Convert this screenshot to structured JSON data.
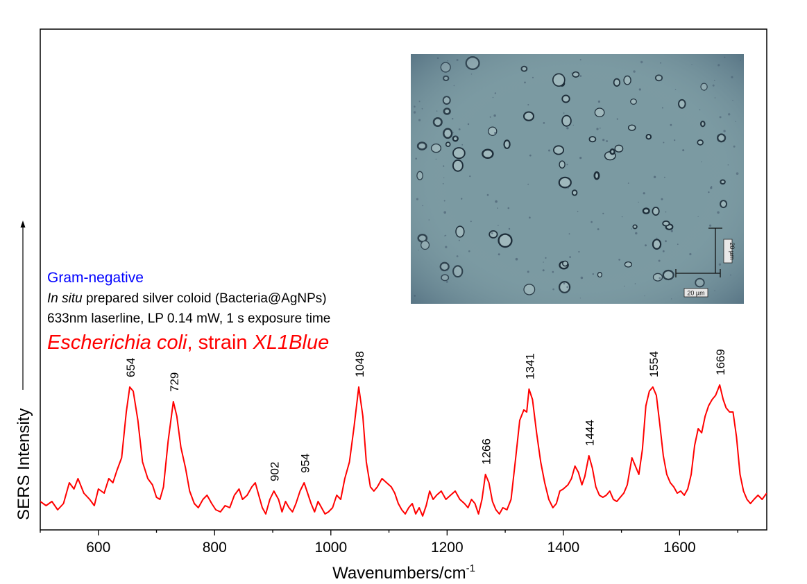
{
  "chart_data": {
    "type": "line",
    "xlabel": "Wavenumbers/cm",
    "xlabel_sup": "-1",
    "ylabel": "SERS Intensity",
    "xlim": [
      500,
      1750
    ],
    "ylim": [
      0,
      100
    ],
    "xticks": [
      600,
      800,
      1000,
      1200,
      1400,
      1600
    ],
    "grid": false,
    "series": [
      {
        "color": "#ff0000",
        "points": [
          [
            500,
            9
          ],
          [
            510,
            7
          ],
          [
            520,
            9
          ],
          [
            530,
            5
          ],
          [
            540,
            8
          ],
          [
            550,
            18
          ],
          [
            558,
            15
          ],
          [
            565,
            20
          ],
          [
            575,
            13
          ],
          [
            585,
            10
          ],
          [
            593,
            7
          ],
          [
            600,
            15
          ],
          [
            610,
            13
          ],
          [
            618,
            20
          ],
          [
            625,
            18
          ],
          [
            632,
            24
          ],
          [
            640,
            30
          ],
          [
            648,
            52
          ],
          [
            654,
            64
          ],
          [
            660,
            62
          ],
          [
            668,
            48
          ],
          [
            676,
            28
          ],
          [
            685,
            20
          ],
          [
            693,
            17
          ],
          [
            700,
            11
          ],
          [
            706,
            10
          ],
          [
            712,
            16
          ],
          [
            720,
            38
          ],
          [
            729,
            57
          ],
          [
            735,
            50
          ],
          [
            742,
            35
          ],
          [
            750,
            25
          ],
          [
            757,
            14
          ],
          [
            765,
            8
          ],
          [
            772,
            6
          ],
          [
            780,
            10
          ],
          [
            787,
            12
          ],
          [
            795,
            8
          ],
          [
            802,
            5
          ],
          [
            810,
            4
          ],
          [
            818,
            7
          ],
          [
            826,
            6
          ],
          [
            834,
            12
          ],
          [
            842,
            15
          ],
          [
            848,
            10
          ],
          [
            856,
            12
          ],
          [
            864,
            16
          ],
          [
            870,
            18
          ],
          [
            876,
            12
          ],
          [
            882,
            6
          ],
          [
            888,
            3
          ],
          [
            895,
            10
          ],
          [
            902,
            14
          ],
          [
            910,
            10
          ],
          [
            916,
            4
          ],
          [
            922,
            9
          ],
          [
            928,
            6
          ],
          [
            934,
            4
          ],
          [
            940,
            8
          ],
          [
            947,
            14
          ],
          [
            954,
            18
          ],
          [
            960,
            13
          ],
          [
            966,
            8
          ],
          [
            972,
            4
          ],
          [
            978,
            9
          ],
          [
            984,
            6
          ],
          [
            990,
            3
          ],
          [
            996,
            4
          ],
          [
            1003,
            6
          ],
          [
            1010,
            12
          ],
          [
            1017,
            10
          ],
          [
            1024,
            20
          ],
          [
            1032,
            28
          ],
          [
            1040,
            45
          ],
          [
            1048,
            64
          ],
          [
            1055,
            50
          ],
          [
            1061,
            28
          ],
          [
            1068,
            16
          ],
          [
            1074,
            14
          ],
          [
            1080,
            16
          ],
          [
            1088,
            20
          ],
          [
            1096,
            18
          ],
          [
            1104,
            16
          ],
          [
            1110,
            13
          ],
          [
            1116,
            8
          ],
          [
            1122,
            5
          ],
          [
            1128,
            3
          ],
          [
            1134,
            6
          ],
          [
            1140,
            8
          ],
          [
            1146,
            3
          ],
          [
            1152,
            6
          ],
          [
            1158,
            2
          ],
          [
            1164,
            7
          ],
          [
            1170,
            14
          ],
          [
            1176,
            10
          ],
          [
            1182,
            12
          ],
          [
            1190,
            14
          ],
          [
            1198,
            10
          ],
          [
            1206,
            12
          ],
          [
            1214,
            14
          ],
          [
            1222,
            10
          ],
          [
            1230,
            8
          ],
          [
            1236,
            6
          ],
          [
            1242,
            10
          ],
          [
            1248,
            8
          ],
          [
            1254,
            3
          ],
          [
            1260,
            10
          ],
          [
            1266,
            22
          ],
          [
            1272,
            18
          ],
          [
            1278,
            9
          ],
          [
            1284,
            5
          ],
          [
            1290,
            3
          ],
          [
            1296,
            6
          ],
          [
            1303,
            5
          ],
          [
            1310,
            10
          ],
          [
            1318,
            30
          ],
          [
            1325,
            48
          ],
          [
            1332,
            53
          ],
          [
            1337,
            52
          ],
          [
            1341,
            63
          ],
          [
            1347,
            58
          ],
          [
            1354,
            42
          ],
          [
            1361,
            28
          ],
          [
            1368,
            18
          ],
          [
            1375,
            10
          ],
          [
            1382,
            6
          ],
          [
            1388,
            8
          ],
          [
            1394,
            14
          ],
          [
            1400,
            15
          ],
          [
            1408,
            17
          ],
          [
            1414,
            20
          ],
          [
            1420,
            26
          ],
          [
            1426,
            23
          ],
          [
            1432,
            17
          ],
          [
            1437,
            21
          ],
          [
            1444,
            31
          ],
          [
            1450,
            25
          ],
          [
            1456,
            16
          ],
          [
            1462,
            12
          ],
          [
            1468,
            11
          ],
          [
            1474,
            12
          ],
          [
            1480,
            14
          ],
          [
            1486,
            10
          ],
          [
            1492,
            9
          ],
          [
            1498,
            11
          ],
          [
            1504,
            13
          ],
          [
            1510,
            17
          ],
          [
            1518,
            30
          ],
          [
            1524,
            26
          ],
          [
            1530,
            22
          ],
          [
            1536,
            34
          ],
          [
            1542,
            55
          ],
          [
            1548,
            62
          ],
          [
            1554,
            64
          ],
          [
            1560,
            60
          ],
          [
            1566,
            46
          ],
          [
            1572,
            31
          ],
          [
            1578,
            22
          ],
          [
            1584,
            18
          ],
          [
            1590,
            16
          ],
          [
            1596,
            13
          ],
          [
            1602,
            14
          ],
          [
            1608,
            12
          ],
          [
            1614,
            15
          ],
          [
            1620,
            22
          ],
          [
            1626,
            36
          ],
          [
            1632,
            44
          ],
          [
            1638,
            42
          ],
          [
            1644,
            50
          ],
          [
            1650,
            55
          ],
          [
            1656,
            58
          ],
          [
            1662,
            60
          ],
          [
            1669,
            65
          ],
          [
            1675,
            58
          ],
          [
            1680,
            54
          ],
          [
            1686,
            52
          ],
          [
            1692,
            52
          ],
          [
            1698,
            40
          ],
          [
            1704,
            22
          ],
          [
            1710,
            14
          ],
          [
            1716,
            10
          ],
          [
            1722,
            8
          ],
          [
            1728,
            10
          ],
          [
            1735,
            12
          ],
          [
            1742,
            10
          ],
          [
            1750,
            13
          ]
        ]
      }
    ],
    "peak_labels": [
      {
        "x": 654,
        "label": "654"
      },
      {
        "x": 729,
        "label": "729"
      },
      {
        "x": 902,
        "label": "902"
      },
      {
        "x": 954,
        "label": "954"
      },
      {
        "x": 1048,
        "label": "1048"
      },
      {
        "x": 1266,
        "label": "1266"
      },
      {
        "x": 1341,
        "label": "1341"
      },
      {
        "x": 1444,
        "label": "1444"
      },
      {
        "x": 1554,
        "label": "1554"
      },
      {
        "x": 1669,
        "label": "1669"
      }
    ]
  },
  "annotations": {
    "gram": "Gram-negative",
    "prep_italic": "In situ",
    "prep_rest": " prepared silver coloid (Bacteria@AgNPs)",
    "laser": "633nm laserline, LP 0.14 mW, 1 s exposure time",
    "organism_italic": "Escherichia coli",
    "organism_mid": ", strain ",
    "strain_italic": "XL1Blue"
  },
  "micrograph": {
    "scale_h": "20 µm",
    "scale_v": "20 µm"
  },
  "colors": {
    "spectrum": "#ff0000",
    "gram": "#0000ff",
    "organism": "#ff0000",
    "micrograph_bg": "#7b9aa2"
  }
}
